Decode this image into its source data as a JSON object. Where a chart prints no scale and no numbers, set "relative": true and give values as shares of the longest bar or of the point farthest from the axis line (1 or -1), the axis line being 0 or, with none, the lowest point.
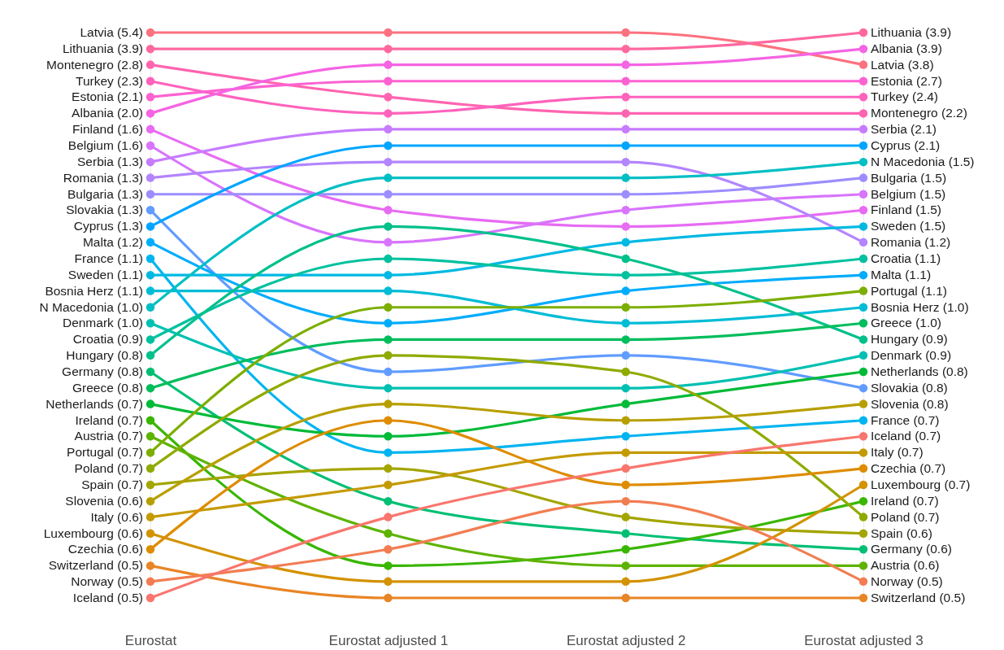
{
  "chart_data": {
    "type": "line",
    "relative": true,
    "categories": [
      "Eurostat",
      "Eurostat adjusted 1",
      "Eurostat adjusted 2",
      "Eurostat adjusted 3"
    ],
    "tick_labels": "x",
    "grid": "x",
    "marker": "circle",
    "line_style": "solid",
    "series": [
      {
        "color": "#FC717F",
        "values": [
          1,
          1,
          1,
          0.943
        ]
      },
      {
        "color": "#FF689F",
        "values": [
          0.971,
          0.971,
          0.971,
          1
        ]
      },
      {
        "color": "#FF64B0",
        "values": [
          0.943,
          0.886,
          0.857,
          0.857
        ]
      },
      {
        "color": "#FF62BC",
        "values": [
          0.914,
          0.857,
          0.886,
          0.886
        ]
      },
      {
        "color": "#FD61D1",
        "values": [
          0.886,
          0.914,
          0.914,
          0.914
        ]
      },
      {
        "color": "#F564E3",
        "values": [
          0.857,
          0.943,
          0.943,
          0.971
        ]
      },
      {
        "color": "#E76BF3",
        "values": [
          0.829,
          0.686,
          0.657,
          0.686
        ]
      },
      {
        "color": "#D874FD",
        "values": [
          0.8,
          0.629,
          0.686,
          0.714
        ]
      },
      {
        "color": "#C77CFF",
        "values": [
          0.771,
          0.829,
          0.829,
          0.829
        ]
      },
      {
        "color": "#B385FF",
        "values": [
          0.743,
          0.771,
          0.771,
          0.629
        ]
      },
      {
        "color": "#9C8DFF",
        "values": [
          0.714,
          0.714,
          0.714,
          0.743
        ]
      },
      {
        "color": "#619CFF",
        "values": [
          0.686,
          0.4,
          0.429,
          0.371
        ]
      },
      {
        "color": "#00A5FF",
        "values": [
          0.657,
          0.8,
          0.8,
          0.8
        ]
      },
      {
        "color": "#00ACFC",
        "values": [
          0.629,
          0.486,
          0.543,
          0.571
        ]
      },
      {
        "color": "#00B4F0",
        "values": [
          0.6,
          0.257,
          0.286,
          0.314
        ]
      },
      {
        "color": "#00B9E3",
        "values": [
          0.571,
          0.571,
          0.629,
          0.657
        ]
      },
      {
        "color": "#00BCD6",
        "values": [
          0.543,
          0.543,
          0.486,
          0.514
        ]
      },
      {
        "color": "#00BFC4",
        "values": [
          0.514,
          0.743,
          0.743,
          0.771
        ]
      },
      {
        "color": "#00C0B2",
        "values": [
          0.486,
          0.371,
          0.371,
          0.429
        ]
      },
      {
        "color": "#00C19F",
        "values": [
          0.457,
          0.6,
          0.571,
          0.6
        ]
      },
      {
        "color": "#00C08B",
        "values": [
          0.429,
          0.657,
          0.6,
          0.457
        ]
      },
      {
        "color": "#00BF74",
        "values": [
          0.4,
          0.171,
          0.114,
          0.086
        ]
      },
      {
        "color": "#00BD5C",
        "values": [
          0.371,
          0.457,
          0.457,
          0.486
        ]
      },
      {
        "color": "#00BA38",
        "values": [
          0.343,
          0.286,
          0.343,
          0.4
        ]
      },
      {
        "color": "#39B600",
        "values": [
          0.314,
          0.057,
          0.086,
          0.171
        ]
      },
      {
        "color": "#5EB300",
        "values": [
          0.286,
          0.114,
          0.057,
          0.057
        ]
      },
      {
        "color": "#7CAE00",
        "values": [
          0.257,
          0.514,
          0.514,
          0.543
        ]
      },
      {
        "color": "#90AA00",
        "values": [
          0.229,
          0.429,
          0.4,
          0.143
        ]
      },
      {
        "color": "#A3A500",
        "values": [
          0.2,
          0.229,
          0.143,
          0.114
        ]
      },
      {
        "color": "#B79F00",
        "values": [
          0.171,
          0.343,
          0.314,
          0.343
        ]
      },
      {
        "color": "#C49A00",
        "values": [
          0.143,
          0.2,
          0.257,
          0.257
        ]
      },
      {
        "color": "#D39200",
        "values": [
          0.114,
          0.029,
          0.029,
          0.2
        ]
      },
      {
        "color": "#DE8C00",
        "values": [
          0.086,
          0.314,
          0.2,
          0.229
        ]
      },
      {
        "color": "#E88526",
        "values": [
          0.057,
          0,
          0,
          0
        ]
      },
      {
        "color": "#F27D52",
        "values": [
          0.029,
          0.086,
          0.171,
          0.029
        ]
      },
      {
        "color": "#F8766D",
        "values": [
          0,
          0.143,
          0.229,
          0.286
        ]
      }
    ],
    "annotations": [
      {
        "text": "Latvia (5.4)",
        "x": "Eurostat",
        "y": 1
      },
      {
        "text": "Lithuania (3.9)",
        "x": "Eurostat",
        "y": 0.971
      },
      {
        "text": "Montenegro (2.8)",
        "x": "Eurostat",
        "y": 0.943
      },
      {
        "text": "Turkey (2.3)",
        "x": "Eurostat",
        "y": 0.914
      },
      {
        "text": "Estonia (2.1)",
        "x": "Eurostat",
        "y": 0.886
      },
      {
        "text": "Albania (2.0)",
        "x": "Eurostat",
        "y": 0.857
      },
      {
        "text": "Finland (1.6)",
        "x": "Eurostat",
        "y": 0.829
      },
      {
        "text": "Belgium (1.6)",
        "x": "Eurostat",
        "y": 0.8
      },
      {
        "text": "Serbia (1.3)",
        "x": "Eurostat",
        "y": 0.771
      },
      {
        "text": "Romania (1.3)",
        "x": "Eurostat",
        "y": 0.743
      },
      {
        "text": "Bulgaria (1.3)",
        "x": "Eurostat",
        "y": 0.714
      },
      {
        "text": "Slovakia (1.3)",
        "x": "Eurostat",
        "y": 0.686
      },
      {
        "text": "Cyprus (1.3)",
        "x": "Eurostat",
        "y": 0.657
      },
      {
        "text": "Malta (1.2)",
        "x": "Eurostat",
        "y": 0.629
      },
      {
        "text": "France (1.1)",
        "x": "Eurostat",
        "y": 0.6
      },
      {
        "text": "Sweden (1.1)",
        "x": "Eurostat",
        "y": 0.571
      },
      {
        "text": "Bosnia Herz (1.1)",
        "x": "Eurostat",
        "y": 0.543
      },
      {
        "text": "N Macedonia (1.0)",
        "x": "Eurostat",
        "y": 0.514
      },
      {
        "text": "Denmark (1.0)",
        "x": "Eurostat",
        "y": 0.486
      },
      {
        "text": "Croatia (0.9)",
        "x": "Eurostat",
        "y": 0.457
      },
      {
        "text": "Hungary (0.8)",
        "x": "Eurostat",
        "y": 0.429
      },
      {
        "text": "Germany (0.8)",
        "x": "Eurostat",
        "y": 0.4
      },
      {
        "text": "Greece (0.8)",
        "x": "Eurostat",
        "y": 0.371
      },
      {
        "text": "Netherlands (0.7)",
        "x": "Eurostat",
        "y": 0.343
      },
      {
        "text": "Ireland (0.7)",
        "x": "Eurostat",
        "y": 0.314
      },
      {
        "text": "Austria (0.7)",
        "x": "Eurostat",
        "y": 0.286
      },
      {
        "text": "Portugal (0.7)",
        "x": "Eurostat",
        "y": 0.257
      },
      {
        "text": "Poland (0.7)",
        "x": "Eurostat",
        "y": 0.229
      },
      {
        "text": "Spain (0.7)",
        "x": "Eurostat",
        "y": 0.2
      },
      {
        "text": "Slovenia (0.6)",
        "x": "Eurostat",
        "y": 0.171
      },
      {
        "text": "Italy (0.6)",
        "x": "Eurostat",
        "y": 0.143
      },
      {
        "text": "Luxembourg (0.6)",
        "x": "Eurostat",
        "y": 0.114
      },
      {
        "text": "Czechia (0.6)",
        "x": "Eurostat",
        "y": 0.086
      },
      {
        "text": "Switzerland (0.5)",
        "x": "Eurostat",
        "y": 0.057
      },
      {
        "text": "Norway (0.5)",
        "x": "Eurostat",
        "y": 0.029
      },
      {
        "text": "Iceland (0.5)",
        "x": "Eurostat",
        "y": 0
      },
      {
        "text": "Lithuania (3.9)",
        "x": "Eurostat adjusted 3",
        "y": 1
      },
      {
        "text": "Albania (3.9)",
        "x": "Eurostat adjusted 3",
        "y": 0.971
      },
      {
        "text": "Latvia (3.8)",
        "x": "Eurostat adjusted 3",
        "y": 0.943
      },
      {
        "text": "Estonia (2.7)",
        "x": "Eurostat adjusted 3",
        "y": 0.914
      },
      {
        "text": "Turkey (2.4)",
        "x": "Eurostat adjusted 3",
        "y": 0.886
      },
      {
        "text": "Montenegro (2.2)",
        "x": "Eurostat adjusted 3",
        "y": 0.857
      },
      {
        "text": "Serbia (2.1)",
        "x": "Eurostat adjusted 3",
        "y": 0.829
      },
      {
        "text": "Cyprus (2.1)",
        "x": "Eurostat adjusted 3",
        "y": 0.8
      },
      {
        "text": "N Macedonia (1.5)",
        "x": "Eurostat adjusted 3",
        "y": 0.771
      },
      {
        "text": "Bulgaria (1.5)",
        "x": "Eurostat adjusted 3",
        "y": 0.743
      },
      {
        "text": "Belgium (1.5)",
        "x": "Eurostat adjusted 3",
        "y": 0.714
      },
      {
        "text": "Finland (1.5)",
        "x": "Eurostat adjusted 3",
        "y": 0.686
      },
      {
        "text": "Sweden (1.5)",
        "x": "Eurostat adjusted 3",
        "y": 0.657
      },
      {
        "text": "Romania (1.2)",
        "x": "Eurostat adjusted 3",
        "y": 0.629
      },
      {
        "text": "Croatia (1.1)",
        "x": "Eurostat adjusted 3",
        "y": 0.6
      },
      {
        "text": "Malta (1.1)",
        "x": "Eurostat adjusted 3",
        "y": 0.571
      },
      {
        "text": "Portugal (1.1)",
        "x": "Eurostat adjusted 3",
        "y": 0.543
      },
      {
        "text": "Bosnia Herz (1.0)",
        "x": "Eurostat adjusted 3",
        "y": 0.514
      },
      {
        "text": "Greece (1.0)",
        "x": "Eurostat adjusted 3",
        "y": 0.486
      },
      {
        "text": "Hungary (0.9)",
        "x": "Eurostat adjusted 3",
        "y": 0.457
      },
      {
        "text": "Denmark (0.9)",
        "x": "Eurostat adjusted 3",
        "y": 0.429
      },
      {
        "text": "Netherlands (0.8)",
        "x": "Eurostat adjusted 3",
        "y": 0.4
      },
      {
        "text": "Slovakia (0.8)",
        "x": "Eurostat adjusted 3",
        "y": 0.371
      },
      {
        "text": "Slovenia (0.8)",
        "x": "Eurostat adjusted 3",
        "y": 0.343
      },
      {
        "text": "France (0.7)",
        "x": "Eurostat adjusted 3",
        "y": 0.314
      },
      {
        "text": "Iceland (0.7)",
        "x": "Eurostat adjusted 3",
        "y": 0.286
      },
      {
        "text": "Italy (0.7)",
        "x": "Eurostat adjusted 3",
        "y": 0.257
      },
      {
        "text": "Czechia (0.7)",
        "x": "Eurostat adjusted 3",
        "y": 0.229
      },
      {
        "text": "Luxembourg (0.7)",
        "x": "Eurostat adjusted 3",
        "y": 0.2
      },
      {
        "text": "Ireland (0.7)",
        "x": "Eurostat adjusted 3",
        "y": 0.171
      },
      {
        "text": "Poland (0.7)",
        "x": "Eurostat adjusted 3",
        "y": 0.143
      },
      {
        "text": "Spain (0.6)",
        "x": "Eurostat adjusted 3",
        "y": 0.114
      },
      {
        "text": "Germany (0.6)",
        "x": "Eurostat adjusted 3",
        "y": 0.086
      },
      {
        "text": "Austria (0.6)",
        "x": "Eurostat adjusted 3",
        "y": 0.057
      },
      {
        "text": "Norway (0.5)",
        "x": "Eurostat adjusted 3",
        "y": 0.029
      },
      {
        "text": "Switzerland (0.5)",
        "x": "Eurostat adjusted 3",
        "y": 0
      }
    ]
  }
}
